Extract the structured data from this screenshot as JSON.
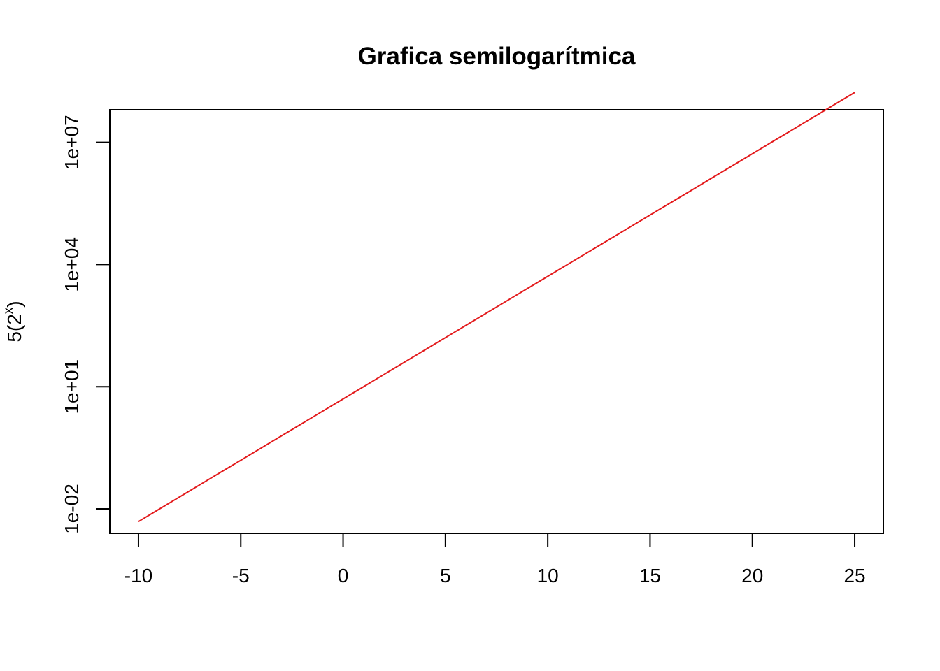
{
  "chart_data": {
    "type": "line",
    "title": "Grafica semilogarítmica",
    "xlabel": "",
    "ylabel": {
      "base": "5(2",
      "superscript": "x",
      "close": ")"
    },
    "y_scale": "log10",
    "xlim": [
      -11.4,
      26.4
    ],
    "ylim_log10": [
      -2.6,
      7.8
    ],
    "x_ticks": [
      {
        "value": -10,
        "label": "-10"
      },
      {
        "value": -5,
        "label": "-5"
      },
      {
        "value": 0,
        "label": "0"
      },
      {
        "value": 5,
        "label": "5"
      },
      {
        "value": 10,
        "label": "10"
      },
      {
        "value": 15,
        "label": "15"
      },
      {
        "value": 20,
        "label": "20"
      },
      {
        "value": 25,
        "label": "25"
      }
    ],
    "y_ticks": [
      {
        "value": 0.01,
        "label": "1e-02"
      },
      {
        "value": 10,
        "label": "1e+01"
      },
      {
        "value": 10000,
        "label": "1e+04"
      },
      {
        "value": 10000000,
        "label": "1e+07"
      }
    ],
    "series": [
      {
        "name": "5(2^x)",
        "color": "#e31a1c",
        "x": [
          -10,
          -9,
          -8,
          -7,
          -6,
          -5,
          -4,
          -3,
          -2,
          -1,
          0,
          1,
          2,
          3,
          4,
          5,
          6,
          7,
          8,
          9,
          10,
          11,
          12,
          13,
          14,
          15,
          16,
          17,
          18,
          19,
          20,
          21,
          22,
          23,
          24,
          25
        ],
        "y": [
          0.0048828125,
          0.009765625,
          0.01953125,
          0.0390625,
          0.078125,
          0.15625,
          0.3125,
          0.625,
          1.25,
          2.5,
          5,
          10,
          20,
          40,
          80,
          160,
          320,
          640,
          1280,
          2560,
          5120,
          10240,
          20480,
          40960,
          81920,
          163840,
          327680,
          655360,
          1310720,
          2621440,
          5242880,
          10485760,
          20971520,
          41943040,
          83886080,
          167772160
        ]
      }
    ],
    "grid": false,
    "legend": "none"
  }
}
